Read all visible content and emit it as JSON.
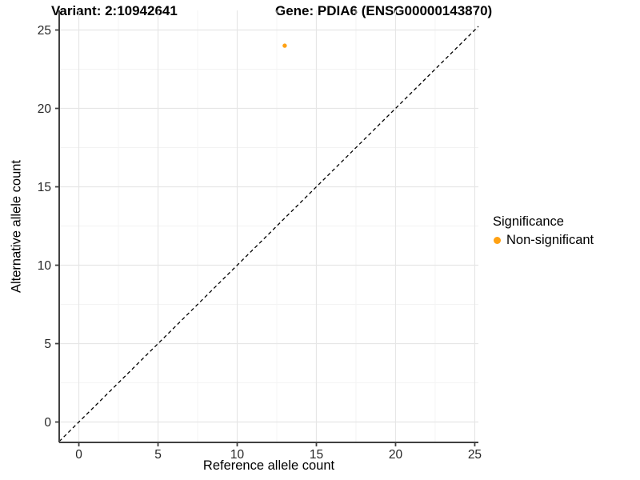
{
  "chart_data": {
    "type": "scatter",
    "titles": {
      "left": "Variant: 2:10942641",
      "right": "Gene: PDIA6 (ENSG00000143870)"
    },
    "xlabel": "Reference allele count",
    "ylabel": "Alternative allele count",
    "xlim": [
      -1.24,
      25.23
    ],
    "ylim": [
      -1.3,
      26.25
    ],
    "x_ticks": [
      0,
      5,
      10,
      15,
      20,
      25
    ],
    "y_ticks": [
      0,
      5,
      10,
      15,
      20,
      25
    ],
    "x_minor_ticks": [
      2.5,
      7.5,
      12.5,
      17.5,
      22.5
    ],
    "y_minor_ticks": [
      2.5,
      7.5,
      12.5,
      17.5,
      22.5
    ],
    "grid": "major+minor",
    "points": [
      {
        "x": 13,
        "y": 24,
        "significance": "Non-significant"
      }
    ],
    "identity_line": {
      "equation": "y = x",
      "style": "dashed",
      "color": "#000000"
    },
    "legend": {
      "title": "Significance",
      "position": "right",
      "items": [
        {
          "label": "Non-significant",
          "color": "#FFA113",
          "marker": "circle"
        }
      ]
    },
    "colors": {
      "point": "#FFA113",
      "grid_major": "#E6E6E6",
      "grid_minor": "#F3F3F3",
      "axis_line": "#404040",
      "tick_text": "#262626"
    }
  }
}
